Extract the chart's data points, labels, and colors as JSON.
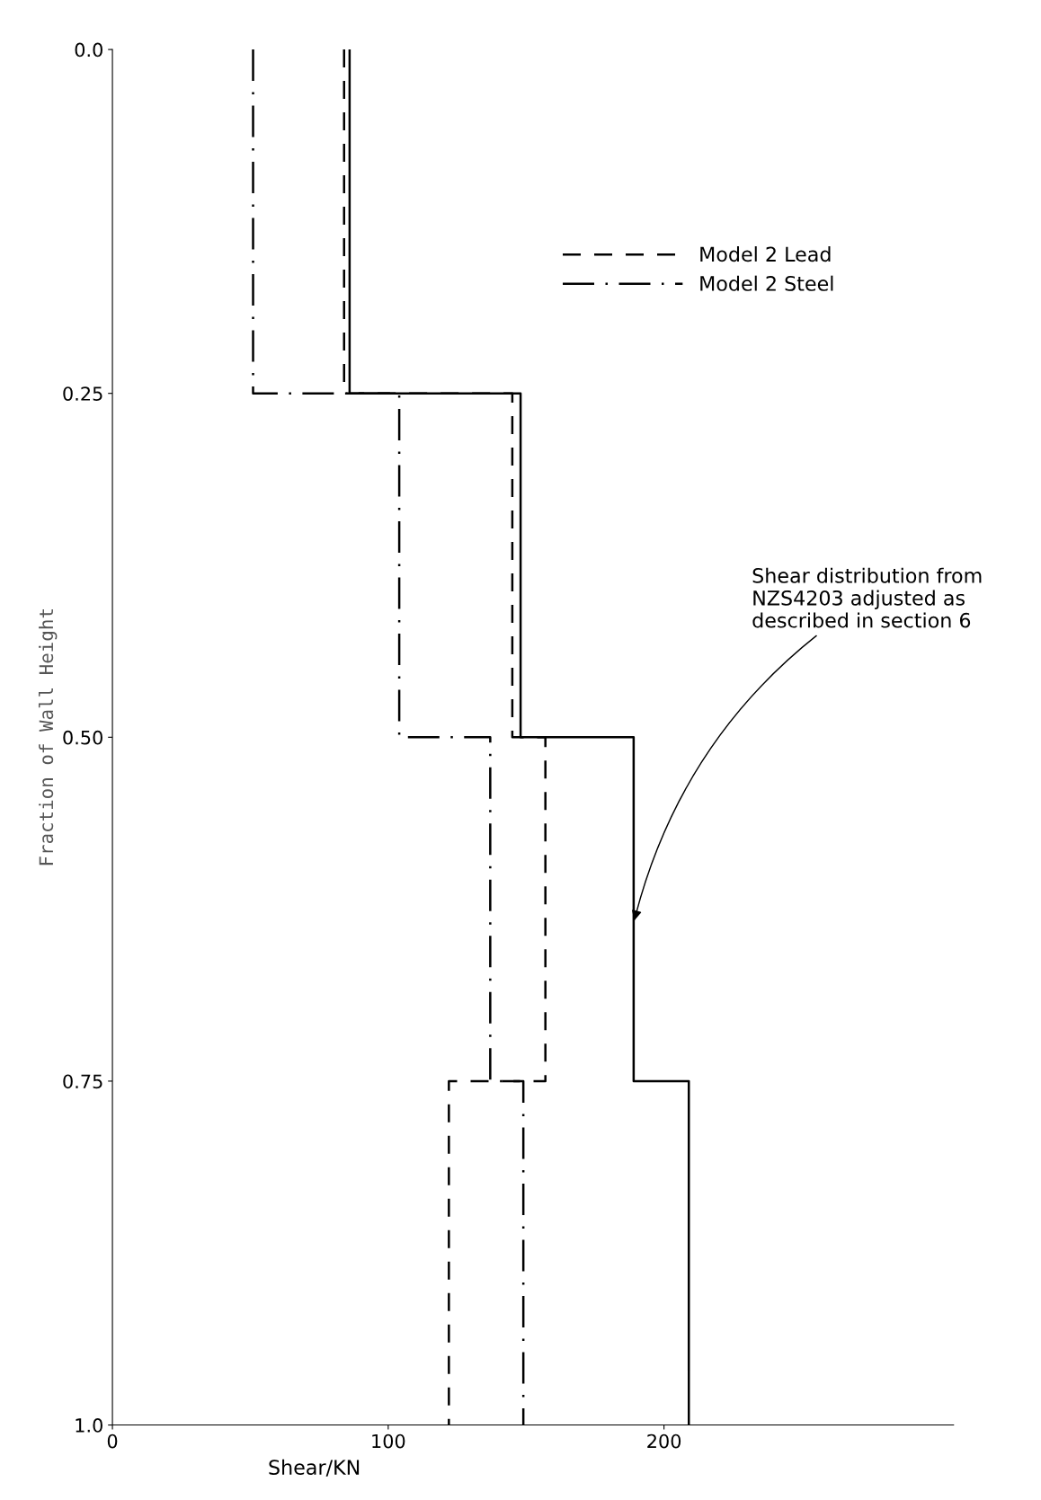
{
  "chart_data": {
    "type": "step",
    "orientation": "horizontal",
    "xlabel": "Shear/KN",
    "ylabel": "Fraction of Wall Height",
    "x": [
      0,
      0.25,
      0.5,
      0.75,
      1.0
    ],
    "series": [
      {
        "color": "#000000",
        "line_style": "solid",
        "values": [
          86,
          148,
          189,
          209,
          209
        ]
      },
      {
        "name": "Model 2 Lead",
        "color": "#000000",
        "line_style": "dashed",
        "values": [
          84,
          145,
          157,
          122,
          122
        ]
      },
      {
        "name": "Model 2 Steel",
        "color": "#000000",
        "line_style": "dashdot",
        "values": [
          51,
          104,
          137,
          149,
          149
        ]
      }
    ],
    "xlim": [
      0,
      305
    ],
    "xticks": [
      0,
      100,
      200
    ],
    "ylim": [
      1.0,
      0.0
    ],
    "yticks": [
      {
        "value": 0,
        "label": "0.0"
      },
      0.25,
      {
        "value": 0.5,
        "label": "0.50"
      },
      0.75,
      {
        "value": 1.0,
        "label": "1.0"
      }
    ],
    "grid": false,
    "legend": "top right",
    "annotations": [
      {
        "text": "Shear distribution from\nNZS4203 adjusted as\ndescribed in section 6",
        "x": 189,
        "y": 0.635
      }
    ]
  }
}
